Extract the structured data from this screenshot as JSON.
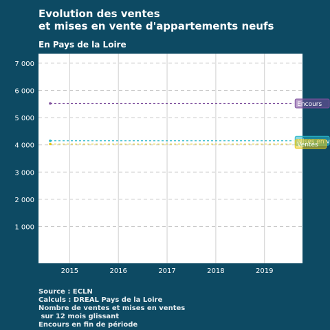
{
  "chart_data": {
    "type": "line",
    "title_lines": [
      "Evolution des ventes",
      "et mises en vente d'appartements neufs"
    ],
    "subtitle": "En Pays de la Loire",
    "caption_lines": [
      "Source : ECLN",
      "Calculs : DREAL Pays de la Loire",
      "Nombre de ventes et mises en ventes",
      " sur 12 mois glissant",
      "Encours en fin de période"
    ],
    "x_ticks": [
      "2015",
      "2016",
      "2017",
      "2018",
      "2019"
    ],
    "y_ticks": [
      "1 000",
      "2 000",
      "3 000",
      "4 000",
      "5 000",
      "6 000",
      "7 000"
    ],
    "xlim": [
      2014.36,
      2019.78
    ],
    "ylim": [
      -350,
      7350
    ],
    "x_tick_values": [
      2015,
      2016,
      2017,
      2018,
      2019
    ],
    "y_tick_values": [
      1000,
      2000,
      3000,
      4000,
      5000,
      6000,
      7000
    ],
    "grid": true,
    "series": [
      {
        "name": "Encours",
        "color": "#7e4f9e",
        "label_text": "Encours",
        "x": [
          2014.6,
          2019.6
        ],
        "values": [
          5520,
          5520
        ]
      },
      {
        "name": "Mises en vente",
        "color": "#2ab7c8",
        "label_text": "Mises en vente",
        "x": [
          2014.6,
          2019.6
        ],
        "values": [
          4150,
          4150
        ]
      },
      {
        "name": "Ventes",
        "color": "#e8c91a",
        "label_text": "Ventes",
        "x": [
          2014.6,
          2019.6
        ],
        "values": [
          4030,
          4030
        ]
      }
    ]
  }
}
